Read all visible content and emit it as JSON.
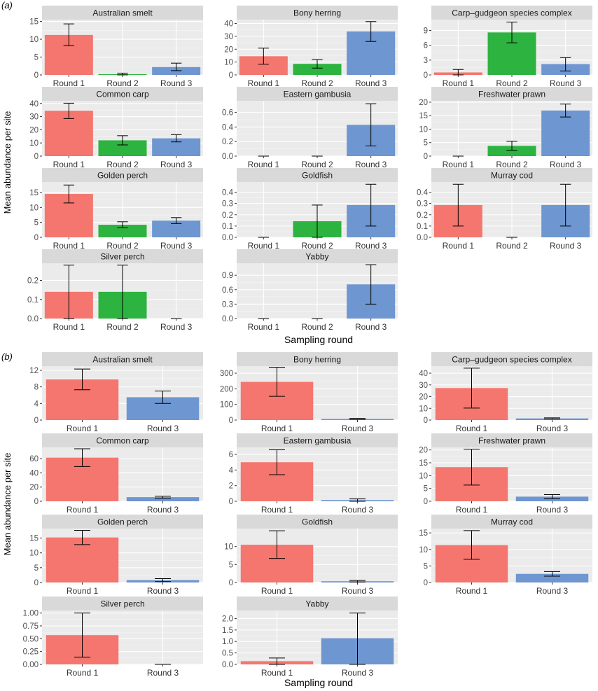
{
  "figure": {
    "ylabel": "Mean abundance per site",
    "xlabel": "Sampling round",
    "colors": {
      "Round 1": "#F4766E",
      "Round 2": "#2DB33F",
      "Round 3": "#6E96D0",
      "panel_bg": "#EBEBEB",
      "strip_bg": "#D9D9D9",
      "grid": "#FFFFFF",
      "axis_text": "#4D4D4D"
    }
  },
  "chart_data": [
    {
      "type": "bar",
      "panel_label": "(a)",
      "categories": [
        "Round 1",
        "Round 2",
        "Round 3"
      ],
      "xlabel": "Sampling round",
      "ylabel": "Mean abundance per site",
      "facets": [
        {
          "title": "Australian smelt",
          "values": [
            11.2,
            0.2,
            2.2
          ],
          "err_low": [
            8.2,
            0.0,
            1.2
          ],
          "err_high": [
            14.3,
            0.5,
            3.3
          ],
          "ylim": [
            0,
            15.5
          ],
          "ticks": [
            0,
            5,
            10,
            15
          ],
          "tick_labels": [
            "0",
            "5",
            "10",
            "15"
          ]
        },
        {
          "title": "Bony herring",
          "values": [
            14.5,
            8.6,
            33.8
          ],
          "err_low": [
            8.3,
            5.3,
            26.0
          ],
          "err_high": [
            20.8,
            11.9,
            41.5
          ],
          "ylim": [
            0,
            43
          ],
          "ticks": [
            0,
            10,
            20,
            30,
            40
          ],
          "tick_labels": [
            "0",
            "10",
            "20",
            "30",
            "40"
          ]
        },
        {
          "title": "Carp–gudgeon species complex",
          "values": [
            0.5,
            8.6,
            2.2
          ],
          "err_low": [
            0.0,
            6.5,
            0.8
          ],
          "err_high": [
            1.1,
            10.7,
            3.5
          ],
          "ylim": [
            0,
            11.2
          ],
          "ticks": [
            0,
            3,
            6,
            9
          ],
          "tick_labels": [
            "0",
            "3",
            "6",
            "9"
          ]
        },
        {
          "title": "Common carp",
          "values": [
            34.5,
            12.0,
            13.5
          ],
          "err_low": [
            28.5,
            8.5,
            10.8
          ],
          "err_high": [
            40.2,
            15.5,
            16.3
          ],
          "ylim": [
            0,
            42
          ],
          "ticks": [
            0,
            10,
            20,
            30,
            40
          ],
          "tick_labels": [
            "0",
            "10",
            "20",
            "30",
            "40"
          ]
        },
        {
          "title": "Eastern gambusia",
          "values": [
            0.0,
            0.0,
            0.43
          ],
          "err_low": [
            0.0,
            0.0,
            0.14
          ],
          "err_high": [
            0.0,
            0.0,
            0.72
          ],
          "ylim": [
            0,
            0.76
          ],
          "ticks": [
            0,
            0.2,
            0.4,
            0.6
          ],
          "tick_labels": [
            "0.0",
            "0.2",
            "0.4",
            "0.6"
          ]
        },
        {
          "title": "Freshwater prawn",
          "values": [
            0.0,
            3.8,
            16.9
          ],
          "err_low": [
            0.0,
            2.2,
            14.5
          ],
          "err_high": [
            0.0,
            5.5,
            19.3
          ],
          "ylim": [
            0,
            20.5
          ],
          "ticks": [
            0,
            5,
            10,
            15,
            20
          ],
          "tick_labels": [
            "0",
            "5",
            "10",
            "15",
            "20"
          ]
        },
        {
          "title": "Golden perch",
          "values": [
            14.5,
            4.2,
            5.6
          ],
          "err_low": [
            11.5,
            3.2,
            4.6
          ],
          "err_high": [
            17.5,
            5.2,
            6.6
          ],
          "ylim": [
            0,
            18.5
          ],
          "ticks": [
            0,
            5,
            10,
            15
          ],
          "tick_labels": [
            "0",
            "5",
            "10",
            "15"
          ]
        },
        {
          "title": "Goldfish",
          "values": [
            0.0,
            0.143,
            0.286
          ],
          "err_low": [
            0.0,
            0.0,
            0.1
          ],
          "err_high": [
            0.0,
            0.286,
            0.47
          ],
          "ylim": [
            0,
            0.49
          ],
          "ticks": [
            0,
            0.1,
            0.2,
            0.3,
            0.4
          ],
          "tick_labels": [
            "0.0",
            "0.1",
            "0.2",
            "0.3",
            "0.4"
          ]
        },
        {
          "title": "Murray cod",
          "values": [
            0.286,
            0.0,
            0.286
          ],
          "err_low": [
            0.1,
            0.0,
            0.1
          ],
          "err_high": [
            0.47,
            0.0,
            0.47
          ],
          "ylim": [
            0,
            0.49
          ],
          "ticks": [
            0,
            0.1,
            0.2,
            0.3,
            0.4
          ],
          "tick_labels": [
            "0.0",
            "0.1",
            "0.2",
            "0.3",
            "0.4"
          ]
        },
        {
          "title": "Silver perch",
          "values": [
            0.14,
            0.14,
            0.0
          ],
          "err_low": [
            0.0,
            0.0,
            0.0
          ],
          "err_high": [
            0.28,
            0.28,
            0.0
          ],
          "ylim": [
            0,
            0.29
          ],
          "ticks": [
            0,
            0.1,
            0.2
          ],
          "tick_labels": [
            "0.0",
            "0.1",
            "0.2"
          ]
        },
        {
          "title": "Yabby",
          "values": [
            0.0,
            0.0,
            0.71
          ],
          "err_low": [
            0.0,
            0.0,
            0.3
          ],
          "err_high": [
            0.0,
            0.0,
            1.12
          ],
          "ylim": [
            0,
            1.15
          ],
          "ticks": [
            0,
            0.3,
            0.6,
            0.9
          ],
          "tick_labels": [
            "0.0",
            "0.3",
            "0.6",
            "0.9"
          ]
        }
      ]
    },
    {
      "type": "bar",
      "panel_label": "(b)",
      "categories": [
        "Round 1",
        "Round 3"
      ],
      "xlabel": "Sampling round",
      "ylabel": "Mean abundance per site",
      "facets": [
        {
          "title": "Australian smelt",
          "values": [
            9.8,
            5.5
          ],
          "err_low": [
            7.3,
            4.0
          ],
          "err_high": [
            12.3,
            7.0
          ],
          "ylim": [
            0,
            13
          ],
          "ticks": [
            0,
            4,
            8,
            12
          ],
          "tick_labels": [
            "0",
            "4",
            "8",
            "12"
          ]
        },
        {
          "title": "Bony herring",
          "values": [
            245,
            7
          ],
          "err_low": [
            152,
            5
          ],
          "err_high": [
            338,
            10
          ],
          "ylim": [
            0,
            345
          ],
          "ticks": [
            0,
            100,
            200,
            300
          ],
          "tick_labels": [
            "0",
            "100",
            "200",
            "300"
          ]
        },
        {
          "title": "Carp–gudgeon species complex",
          "values": [
            27.3,
            1.4
          ],
          "err_low": [
            10.2,
            0.9
          ],
          "err_high": [
            44.3,
            1.9
          ],
          "ylim": [
            0,
            46
          ],
          "ticks": [
            0,
            10,
            20,
            30,
            40
          ],
          "tick_labels": [
            "0",
            "10",
            "20",
            "30",
            "40"
          ]
        },
        {
          "title": "Common carp",
          "values": [
            61.5,
            5.8
          ],
          "err_low": [
            49.0,
            4.5
          ],
          "err_high": [
            74.0,
            7.0
          ],
          "ylim": [
            0,
            76
          ],
          "ticks": [
            0,
            20,
            40,
            60
          ],
          "tick_labels": [
            "0",
            "20",
            "40",
            "60"
          ]
        },
        {
          "title": "Eastern gambusia",
          "values": [
            5.0,
            0.15
          ],
          "err_low": [
            3.4,
            0.0
          ],
          "err_high": [
            6.6,
            0.3
          ],
          "ylim": [
            0,
            6.9
          ],
          "ticks": [
            0,
            2,
            4,
            6
          ],
          "tick_labels": [
            "0",
            "2",
            "4",
            "6"
          ]
        },
        {
          "title": "Freshwater prawn",
          "values": [
            13.3,
            1.8
          ],
          "err_low": [
            6.3,
            1.0
          ],
          "err_high": [
            20.3,
            2.6
          ],
          "ylim": [
            0,
            21
          ],
          "ticks": [
            0,
            5,
            10,
            15,
            20
          ],
          "tick_labels": [
            "0",
            "5",
            "10",
            "15",
            "20"
          ]
        },
        {
          "title": "Golden perch",
          "values": [
            15.2,
            0.8
          ],
          "err_low": [
            12.8,
            0.3
          ],
          "err_high": [
            17.6,
            1.3
          ],
          "ylim": [
            0,
            18.2
          ],
          "ticks": [
            0,
            5,
            10,
            15
          ],
          "tick_labels": [
            "0",
            "5",
            "10",
            "15"
          ]
        },
        {
          "title": "Goldfish",
          "values": [
            10.5,
            0.35
          ],
          "err_low": [
            6.7,
            0.15
          ],
          "err_high": [
            14.4,
            0.55
          ],
          "ylim": [
            0,
            15
          ],
          "ticks": [
            0,
            5,
            10
          ],
          "tick_labels": [
            "0",
            "5",
            "10"
          ]
        },
        {
          "title": "Murray cod",
          "values": [
            11.3,
            2.6
          ],
          "err_low": [
            7.0,
            1.9
          ],
          "err_high": [
            15.7,
            3.3
          ],
          "ylim": [
            0,
            16.3
          ],
          "ticks": [
            0,
            5,
            10,
            15
          ],
          "tick_labels": [
            "0",
            "5",
            "10",
            "15"
          ]
        },
        {
          "title": "Silver perch",
          "values": [
            0.57,
            0.0
          ],
          "err_low": [
            0.14,
            0.0
          ],
          "err_high": [
            1.0,
            0.0
          ],
          "ylim": [
            0,
            1.05
          ],
          "ticks": [
            0,
            0.25,
            0.5,
            0.75,
            1.0
          ],
          "tick_labels": [
            "0.00",
            "0.25",
            "0.50",
            "0.75",
            "1.00"
          ]
        },
        {
          "title": "Yabby",
          "values": [
            0.14,
            1.14
          ],
          "err_low": [
            0.0,
            0.0
          ],
          "err_high": [
            0.28,
            2.24
          ],
          "ylim": [
            0,
            2.35
          ],
          "ticks": [
            0,
            0.5,
            1.0,
            1.5,
            2.0
          ],
          "tick_labels": [
            "0.0",
            "0.5",
            "1.0",
            "1.5",
            "2.0"
          ]
        }
      ]
    }
  ]
}
